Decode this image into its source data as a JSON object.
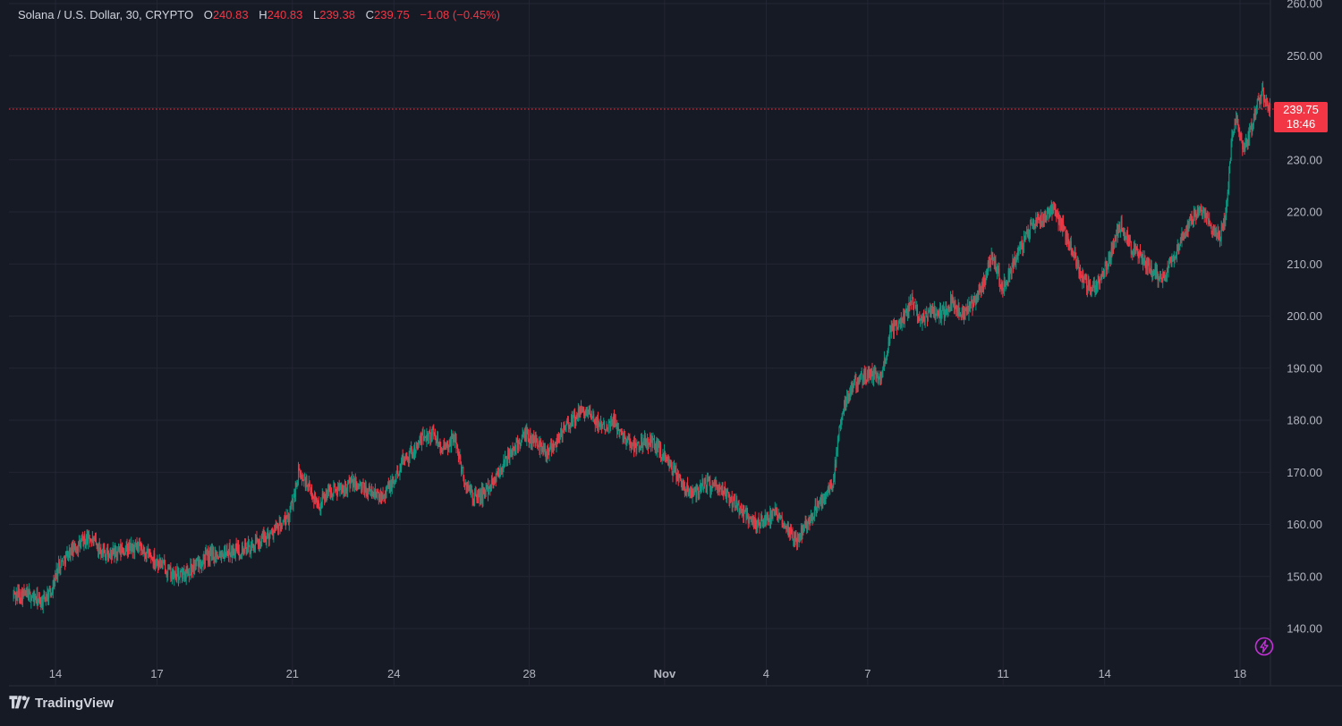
{
  "legend": {
    "symbol": "Solana / U.S. Dollar, 30, CRYPTO",
    "o_label": "O",
    "o_value": "240.83",
    "h_label": "H",
    "h_value": "240.83",
    "l_label": "L",
    "l_value": "239.38",
    "c_label": "C",
    "c_value": "239.75",
    "change": "−1.08 (−0.45%)"
  },
  "price_tag": {
    "price": "239.75",
    "countdown": "18:46"
  },
  "brand": {
    "name": "TradingView"
  },
  "colors": {
    "background": "#161a25",
    "grid": "#232633",
    "up": "#089981",
    "down": "#f23645",
    "text": "#d1d4dc",
    "axis_text": "#b2b5be",
    "bolt": "#c232d6"
  },
  "icons": [
    "tradingview-logo-icon",
    "bolt-icon"
  ],
  "chart_data": {
    "type": "candlestick",
    "title": "Solana / U.S. Dollar, 30, CRYPTO",
    "timeframe": "30",
    "y_axis": {
      "ticks": [
        "140.00",
        "150.00",
        "160.00",
        "170.00",
        "180.00",
        "190.00",
        "200.00",
        "210.00",
        "220.00",
        "230.00",
        "240.00",
        "250.00",
        "260.00"
      ],
      "range": [
        135,
        260
      ]
    },
    "x_axis": {
      "ticks": [
        {
          "label": "14",
          "day": 14
        },
        {
          "label": "17",
          "day": 17
        },
        {
          "label": "21",
          "day": 21
        },
        {
          "label": "24",
          "day": 24
        },
        {
          "label": "28",
          "day": 28
        },
        {
          "label": "Nov",
          "day": 32,
          "bold": true
        },
        {
          "label": "4",
          "day": 35
        },
        {
          "label": "7",
          "day": 38
        },
        {
          "label": "11",
          "day": 42
        },
        {
          "label": "14",
          "day": 45
        },
        {
          "label": "18",
          "day": 49
        }
      ],
      "range_days": [
        12.75,
        49.9
      ]
    },
    "last_price": 239.75,
    "last_ohlc": {
      "open": 240.83,
      "high": 240.83,
      "low": 239.38,
      "close": 239.75
    },
    "change": -1.08,
    "change_pct": -0.45,
    "price_path": [
      [
        12.75,
        146.5
      ],
      [
        13.2,
        146.5
      ],
      [
        13.6,
        145.0
      ],
      [
        13.9,
        147.5
      ],
      [
        14.1,
        152.0
      ],
      [
        14.4,
        154.5
      ],
      [
        14.8,
        156.5
      ],
      [
        15.0,
        157.5
      ],
      [
        15.3,
        155.5
      ],
      [
        15.6,
        154.0
      ],
      [
        16.0,
        155.0
      ],
      [
        16.4,
        155.5
      ],
      [
        16.8,
        154.0
      ],
      [
        17.2,
        152.0
      ],
      [
        17.5,
        150.0
      ],
      [
        17.8,
        150.5
      ],
      [
        18.1,
        152.0
      ],
      [
        18.4,
        153.5
      ],
      [
        18.8,
        154.5
      ],
      [
        19.3,
        155.0
      ],
      [
        19.8,
        155.5
      ],
      [
        20.1,
        157.0
      ],
      [
        20.5,
        159.0
      ],
      [
        20.9,
        161.0
      ],
      [
        21.2,
        170.0
      ],
      [
        21.5,
        167.0
      ],
      [
        21.8,
        163.5
      ],
      [
        22.0,
        166.0
      ],
      [
        22.4,
        167.0
      ],
      [
        22.8,
        168.0
      ],
      [
        23.2,
        166.5
      ],
      [
        23.6,
        165.5
      ],
      [
        24.0,
        168.0
      ],
      [
        24.3,
        173.0
      ],
      [
        24.6,
        174.0
      ],
      [
        24.9,
        177.0
      ],
      [
        25.2,
        177.5
      ],
      [
        25.5,
        174.0
      ],
      [
        25.8,
        177.0
      ],
      [
        26.1,
        168.0
      ],
      [
        26.4,
        165.0
      ],
      [
        26.7,
        166.0
      ],
      [
        27.0,
        169.0
      ],
      [
        27.3,
        172.0
      ],
      [
        27.6,
        175.0
      ],
      [
        27.9,
        177.0
      ],
      [
        28.2,
        176.0
      ],
      [
        28.5,
        174.0
      ],
      [
        28.8,
        176.0
      ],
      [
        29.0,
        178.0
      ],
      [
        29.3,
        180.0
      ],
      [
        29.6,
        182.0
      ],
      [
        29.9,
        180.0
      ],
      [
        30.2,
        179.0
      ],
      [
        30.5,
        180.0
      ],
      [
        30.8,
        177.0
      ],
      [
        31.1,
        175.0
      ],
      [
        31.4,
        176.0
      ],
      [
        31.8,
        175.0
      ],
      [
        32.2,
        171.0
      ],
      [
        32.6,
        167.0
      ],
      [
        32.9,
        166.0
      ],
      [
        33.2,
        168.0
      ],
      [
        33.5,
        167.0
      ],
      [
        33.8,
        166.0
      ],
      [
        34.1,
        164.0
      ],
      [
        34.4,
        162.0
      ],
      [
        34.7,
        160.0
      ],
      [
        35.0,
        161.0
      ],
      [
        35.3,
        162.0
      ],
      [
        35.6,
        160.0
      ],
      [
        35.9,
        157.0
      ],
      [
        36.2,
        160.0
      ],
      [
        36.5,
        163.0
      ],
      [
        36.8,
        166.0
      ],
      [
        37.0,
        168.0
      ],
      [
        37.2,
        180.0
      ],
      [
        37.5,
        186.0
      ],
      [
        37.8,
        188.0
      ],
      [
        38.1,
        189.0
      ],
      [
        38.4,
        188.0
      ],
      [
        38.7,
        197.0
      ],
      [
        39.0,
        199.0
      ],
      [
        39.3,
        203.0
      ],
      [
        39.6,
        199.0
      ],
      [
        39.9,
        201.0
      ],
      [
        40.2,
        200.0
      ],
      [
        40.5,
        203.0
      ],
      [
        40.8,
        200.0
      ],
      [
        41.1,
        202.0
      ],
      [
        41.4,
        206.0
      ],
      [
        41.7,
        212.0
      ],
      [
        42.0,
        205.0
      ],
      [
        42.3,
        210.0
      ],
      [
        42.6,
        214.0
      ],
      [
        42.9,
        218.0
      ],
      [
        43.2,
        219.0
      ],
      [
        43.5,
        221.0
      ],
      [
        43.7,
        218.0
      ],
      [
        43.9,
        215.0
      ],
      [
        44.1,
        212.0
      ],
      [
        44.3,
        208.0
      ],
      [
        44.6,
        205.0
      ],
      [
        44.9,
        207.0
      ],
      [
        45.2,
        212.0
      ],
      [
        45.5,
        218.0
      ],
      [
        45.8,
        213.0
      ],
      [
        46.1,
        211.0
      ],
      [
        46.4,
        209.0
      ],
      [
        46.7,
        207.0
      ],
      [
        47.0,
        211.0
      ],
      [
        47.3,
        215.0
      ],
      [
        47.6,
        219.0
      ],
      [
        47.9,
        220.0
      ],
      [
        48.2,
        217.0
      ],
      [
        48.4,
        215.0
      ],
      [
        48.55,
        218.0
      ],
      [
        48.65,
        224.0
      ],
      [
        48.75,
        233.0
      ],
      [
        48.9,
        238.0
      ],
      [
        49.1,
        232.0
      ],
      [
        49.3,
        235.0
      ],
      [
        49.5,
        240.0
      ],
      [
        49.65,
        243.0
      ],
      [
        49.8,
        241.0
      ],
      [
        49.9,
        239.75
      ]
    ]
  }
}
